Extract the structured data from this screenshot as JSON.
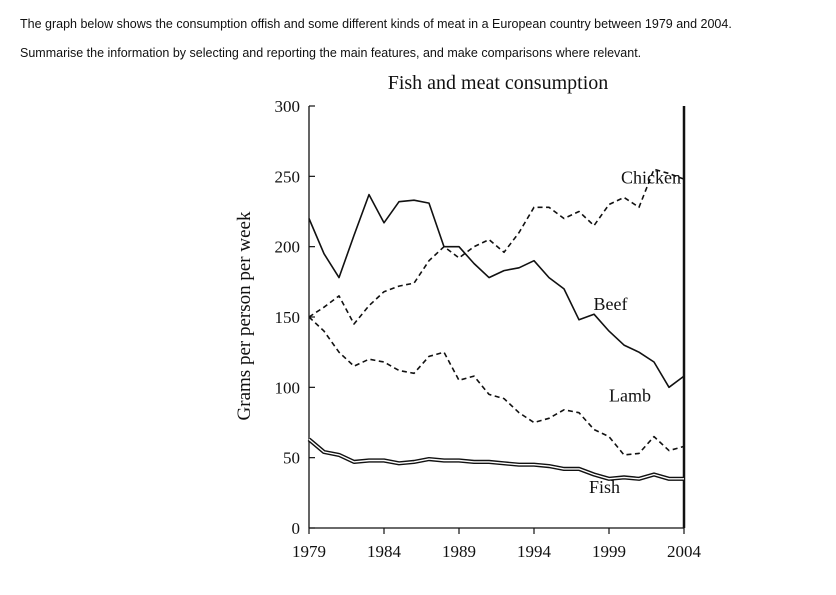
{
  "prompt": {
    "line1": "The graph below shows the consumption offish and some different kinds of meat in a European country between 1979 and 2004.",
    "line2": "Summarise the information by selecting and reporting the main features, and make comparisons where relevant."
  },
  "chart_data": {
    "type": "line",
    "title": "Fish and meat consumption",
    "ylabel": "Grams per person per week",
    "xlabel": "",
    "xlim": [
      1979,
      2004
    ],
    "ylim": [
      0,
      300
    ],
    "xticks": [
      1979,
      1984,
      1989,
      1994,
      1999,
      2004
    ],
    "yticks": [
      0,
      50,
      100,
      150,
      200,
      250,
      300
    ],
    "grid": false,
    "legend": "inline-labels",
    "series": [
      {
        "name": "Chicken",
        "style": "dashed",
        "x": [
          1979,
          1980,
          1981,
          1982,
          1983,
          1984,
          1985,
          1986,
          1987,
          1988,
          1989,
          1990,
          1991,
          1992,
          1993,
          1994,
          1995,
          1996,
          1997,
          1998,
          1999,
          2000,
          2001,
          2002,
          2003,
          2004
        ],
        "y": [
          150,
          157,
          165,
          145,
          158,
          168,
          172,
          174,
          190,
          200,
          192,
          200,
          205,
          196,
          210,
          228,
          228,
          220,
          225,
          215,
          230,
          235,
          228,
          255,
          252,
          248
        ]
      },
      {
        "name": "Beef",
        "style": "solid",
        "x": [
          1979,
          1980,
          1981,
          1982,
          1983,
          1984,
          1985,
          1986,
          1987,
          1988,
          1989,
          1990,
          1991,
          1992,
          1993,
          1994,
          1995,
          1996,
          1997,
          1998,
          1999,
          2000,
          2001,
          2002,
          2003,
          2004
        ],
        "y": [
          220,
          195,
          178,
          208,
          237,
          217,
          232,
          233,
          231,
          200,
          200,
          188,
          178,
          183,
          185,
          190,
          178,
          170,
          148,
          152,
          140,
          130,
          125,
          118,
          100,
          108
        ]
      },
      {
        "name": "Lamb",
        "style": "dashed",
        "x": [
          1979,
          1980,
          1981,
          1982,
          1983,
          1984,
          1985,
          1986,
          1987,
          1988,
          1989,
          1990,
          1991,
          1992,
          1993,
          1994,
          1995,
          1996,
          1997,
          1998,
          1999,
          2000,
          2001,
          2002,
          2003,
          2004
        ],
        "y": [
          150,
          140,
          125,
          115,
          120,
          118,
          112,
          110,
          122,
          125,
          105,
          108,
          95,
          92,
          82,
          75,
          78,
          84,
          82,
          70,
          65,
          52,
          53,
          65,
          55,
          58
        ]
      },
      {
        "name": "Fish",
        "style": "double",
        "x": [
          1979,
          1980,
          1981,
          1982,
          1983,
          1984,
          1985,
          1986,
          1987,
          1988,
          1989,
          1990,
          1991,
          1992,
          1993,
          1994,
          1995,
          1996,
          1997,
          1998,
          1999,
          2000,
          2001,
          2002,
          2003,
          2004
        ],
        "y": [
          63,
          54,
          52,
          47,
          48,
          48,
          46,
          47,
          49,
          48,
          48,
          47,
          47,
          46,
          45,
          45,
          44,
          42,
          42,
          38,
          35,
          36,
          35,
          38,
          35,
          35
        ]
      }
    ]
  }
}
